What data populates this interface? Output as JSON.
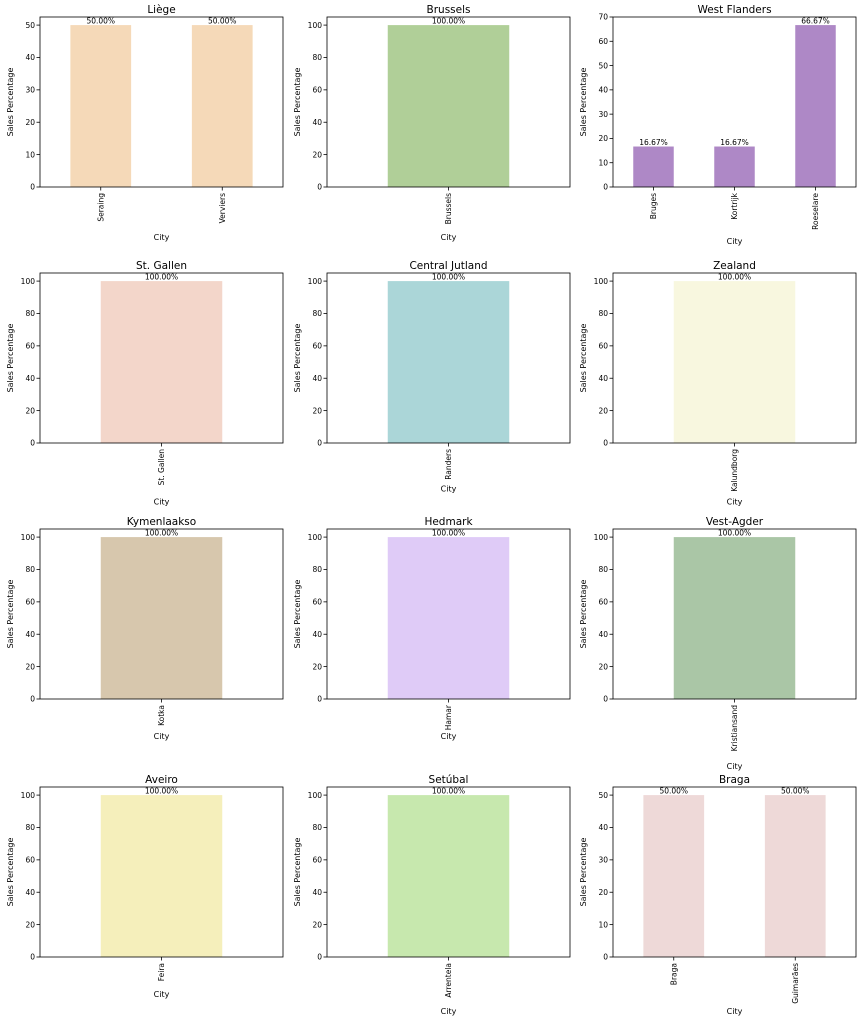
{
  "chart_data": [
    {
      "type": "bar",
      "title": "Liège",
      "xlabel": "City",
      "ylabel": "Sales Percentage",
      "categories": [
        "Seraing",
        "Verviers"
      ],
      "values": [
        50.0,
        50.0
      ],
      "labels": [
        "50.00%",
        "50.00%"
      ],
      "ylim": [
        0,
        52.5
      ],
      "yticks": [
        0,
        10,
        20,
        30,
        40,
        50
      ],
      "color": "#f5d9b8"
    },
    {
      "type": "bar",
      "title": "Brussels",
      "xlabel": "City",
      "ylabel": "Sales Percentage",
      "categories": [
        "Brussels"
      ],
      "values": [
        100.0
      ],
      "labels": [
        "100.00%"
      ],
      "ylim": [
        0,
        105
      ],
      "yticks": [
        0,
        20,
        40,
        60,
        80,
        100
      ],
      "color": "#b0cf98"
    },
    {
      "type": "bar",
      "title": "West Flanders",
      "xlabel": "City",
      "ylabel": "Sales Percentage",
      "categories": [
        "Bruges",
        "Kortrijk",
        "Roeselare"
      ],
      "values": [
        16.67,
        16.67,
        66.67
      ],
      "labels": [
        "16.67%",
        "16.67%",
        "66.67%"
      ],
      "ylim": [
        0,
        70
      ],
      "yticks": [
        0,
        10,
        20,
        30,
        40,
        50,
        60,
        70
      ],
      "color": "#ae88c6"
    },
    {
      "type": "bar",
      "title": "St. Gallen",
      "xlabel": "City",
      "ylabel": "Sales Percentage",
      "categories": [
        "St. Gallen"
      ],
      "values": [
        100.0
      ],
      "labels": [
        "100.00%"
      ],
      "ylim": [
        0,
        105
      ],
      "yticks": [
        0,
        20,
        40,
        60,
        80,
        100
      ],
      "color": "#f3d6ca"
    },
    {
      "type": "bar",
      "title": "Central Jutland",
      "xlabel": "City",
      "ylabel": "Sales Percentage",
      "categories": [
        "Randers"
      ],
      "values": [
        100.0
      ],
      "labels": [
        "100.00%"
      ],
      "ylim": [
        0,
        105
      ],
      "yticks": [
        0,
        20,
        40,
        60,
        80,
        100
      ],
      "color": "#abd6d8"
    },
    {
      "type": "bar",
      "title": "Zealand",
      "xlabel": "City",
      "ylabel": "Sales Percentage",
      "categories": [
        "Kalundborg"
      ],
      "values": [
        100.0
      ],
      "labels": [
        "100.00%"
      ],
      "ylim": [
        0,
        105
      ],
      "yticks": [
        0,
        20,
        40,
        60,
        80,
        100
      ],
      "color": "#f8f7df"
    },
    {
      "type": "bar",
      "title": "Kymenlaakso",
      "xlabel": "City",
      "ylabel": "Sales Percentage",
      "categories": [
        "Kotka"
      ],
      "values": [
        100.0
      ],
      "labels": [
        "100.00%"
      ],
      "ylim": [
        0,
        105
      ],
      "yticks": [
        0,
        20,
        40,
        60,
        80,
        100
      ],
      "color": "#d7c7ad"
    },
    {
      "type": "bar",
      "title": "Hedmark",
      "xlabel": "City",
      "ylabel": "Sales Percentage",
      "categories": [
        "Hamar"
      ],
      "values": [
        100.0
      ],
      "labels": [
        "100.00%"
      ],
      "ylim": [
        0,
        105
      ],
      "yticks": [
        0,
        20,
        40,
        60,
        80,
        100
      ],
      "color": "#dfcbf7"
    },
    {
      "type": "bar",
      "title": "Vest-Agder",
      "xlabel": "City",
      "ylabel": "Sales Percentage",
      "categories": [
        "Kristiansand"
      ],
      "values": [
        100.0
      ],
      "labels": [
        "100.00%"
      ],
      "ylim": [
        0,
        105
      ],
      "yticks": [
        0,
        20,
        40,
        60,
        80,
        100
      ],
      "color": "#aac6a6"
    },
    {
      "type": "bar",
      "title": "Aveiro",
      "xlabel": "City",
      "ylabel": "Sales Percentage",
      "categories": [
        "Feira"
      ],
      "values": [
        100.0
      ],
      "labels": [
        "100.00%"
      ],
      "ylim": [
        0,
        105
      ],
      "yticks": [
        0,
        20,
        40,
        60,
        80,
        100
      ],
      "color": "#f5efbb"
    },
    {
      "type": "bar",
      "title": "Setúbal",
      "xlabel": "City",
      "ylabel": "Sales Percentage",
      "categories": [
        "Arrentela"
      ],
      "values": [
        100.0
      ],
      "labels": [
        "100.00%"
      ],
      "ylim": [
        0,
        105
      ],
      "yticks": [
        0,
        20,
        40,
        60,
        80,
        100
      ],
      "color": "#c7e8ae"
    },
    {
      "type": "bar",
      "title": "Braga",
      "xlabel": "City",
      "ylabel": "Sales Percentage",
      "categories": [
        "Braga",
        "Guimarães"
      ],
      "values": [
        50.0,
        50.0
      ],
      "labels": [
        "50.00%",
        "50.00%"
      ],
      "ylim": [
        0,
        52.5
      ],
      "yticks": [
        0,
        10,
        20,
        30,
        40,
        50
      ],
      "color": "#eed9d8"
    }
  ]
}
